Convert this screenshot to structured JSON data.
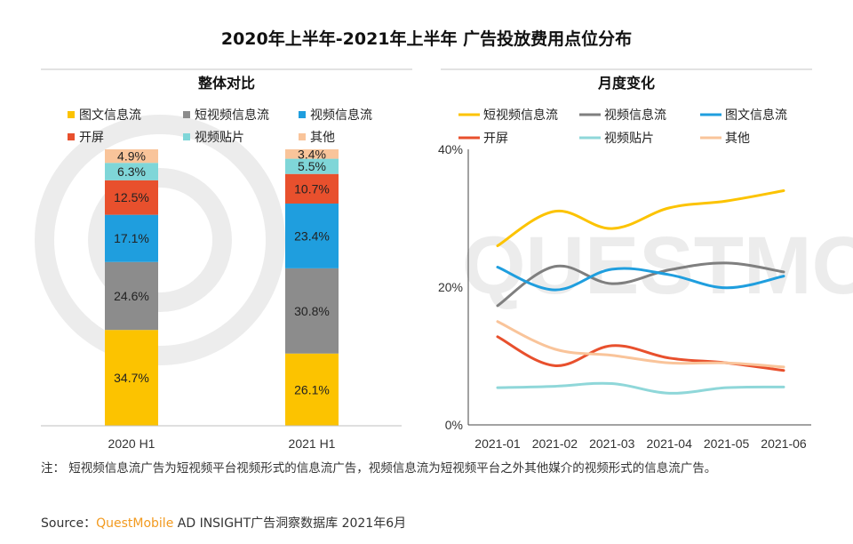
{
  "title": "2020年上半年-2021年上半年 广告投放费用点位分布",
  "watermark": "QUESTMOBILE",
  "footnote": "注： 短视频信息流广告为短视频平台视频形式的信息流广告，视频信息流为短视频平台之外其他媒介的视频形式的信息流广告。",
  "source": {
    "prefix": "Source：",
    "brand": "QuestMobile",
    "suffix": " AD INSIGHT广告洞察数据库 2021年6月"
  },
  "chart_data": [
    {
      "type": "bar",
      "stacked": true,
      "title": "整体对比",
      "categories": [
        "2020 H1",
        "2021 H1"
      ],
      "series": [
        {
          "name": "图文信息流",
          "color": "#fcc300",
          "values": [
            34.7,
            26.1
          ],
          "labels": [
            "34.7%",
            "26.1%"
          ]
        },
        {
          "name": "短视频信息流",
          "color": "#8c8c8c",
          "values": [
            24.6,
            30.8
          ],
          "labels": [
            "24.6%",
            "30.8%"
          ]
        },
        {
          "name": "视频信息流",
          "color": "#1f9ede",
          "values": [
            17.1,
            23.4
          ],
          "labels": [
            "17.1%",
            "23.4%"
          ]
        },
        {
          "name": "开屏",
          "color": "#e8502d",
          "values": [
            12.5,
            10.7
          ],
          "labels": [
            "12.5%",
            "10.7%"
          ]
        },
        {
          "name": "视频贴片",
          "color": "#7fd6d8",
          "values": [
            6.3,
            5.5
          ],
          "labels": [
            "6.3%",
            "5.5%"
          ]
        },
        {
          "name": "其他",
          "color": "#f9c49a",
          "values": [
            4.9,
            3.4
          ],
          "labels": [
            "4.9%",
            "3.4%"
          ]
        }
      ],
      "legend_order": [
        "图文信息流",
        "短视频信息流",
        "视频信息流",
        "开屏",
        "视频贴片",
        "其他"
      ],
      "ylim": [
        0,
        100
      ]
    },
    {
      "type": "line",
      "title": "月度变化",
      "x": [
        "2021-01",
        "2021-02",
        "2021-03",
        "2021-04",
        "2021-05",
        "2021-06"
      ],
      "ylim": [
        0,
        40
      ],
      "yticks": [
        0,
        20,
        40
      ],
      "ytick_labels": [
        "0%",
        "20%",
        "40%"
      ],
      "series": [
        {
          "name": "短视频信息流",
          "color": "#fcc300",
          "values": [
            26,
            31,
            28.5,
            31.5,
            32.5,
            34
          ]
        },
        {
          "name": "视频信息流",
          "color": "#7f7f7f",
          "values": [
            17.3,
            23,
            20.5,
            22.5,
            23.5,
            22.2
          ]
        },
        {
          "name": "图文信息流",
          "color": "#1f9ede",
          "values": [
            22.9,
            19.6,
            22.6,
            21.8,
            19.9,
            21.6
          ]
        },
        {
          "name": "开屏",
          "color": "#e8502d",
          "values": [
            12.8,
            8.6,
            11.5,
            9.7,
            9.0,
            7.9
          ]
        },
        {
          "name": "视频贴片",
          "color": "#8fd7d9",
          "values": [
            5.4,
            5.6,
            6.0,
            4.6,
            5.4,
            5.5
          ]
        },
        {
          "name": "其他",
          "color": "#f9c49a",
          "values": [
            15,
            11,
            10.1,
            9.0,
            9.0,
            8.4
          ]
        }
      ],
      "legend_order": [
        "短视频信息流",
        "视频信息流",
        "图文信息流",
        "开屏",
        "视频贴片",
        "其他"
      ]
    }
  ]
}
